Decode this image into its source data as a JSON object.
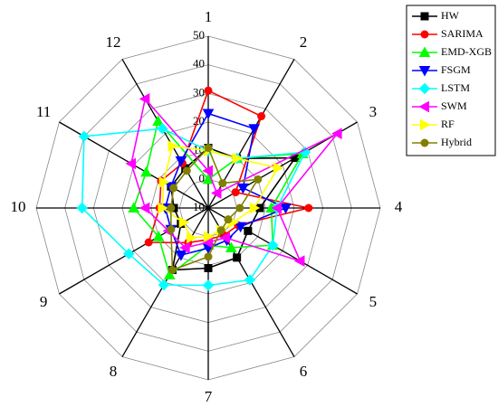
{
  "chart_data": {
    "type": "radar",
    "categories": [
      "1",
      "2",
      "3",
      "4",
      "5",
      "6",
      "7",
      "8",
      "9",
      "10",
      "11",
      "12"
    ],
    "rlim": [
      -10,
      50
    ],
    "rticks": [
      -10,
      0,
      10,
      20,
      30,
      40,
      50
    ],
    "grid": true,
    "legend": "upper right",
    "series": [
      {
        "name": "HW",
        "color": "#000000",
        "marker": "square",
        "values": [
          11,
          10,
          25,
          8,
          6,
          10,
          11,
          15,
          1,
          2,
          5,
          6
        ]
      },
      {
        "name": "SARIMA",
        "color": "#ff0000",
        "marker": "circle",
        "values": [
          31,
          27,
          1,
          25,
          2,
          1,
          1,
          4,
          14,
          7,
          9,
          8
        ]
      },
      {
        "name": "EMD-XGB",
        "color": "#00ff00",
        "marker": "triangle-up",
        "values": [
          0,
          10,
          28,
          12,
          16,
          6,
          3,
          17,
          10,
          16,
          15,
          25
        ]
      },
      {
        "name": "FSGM",
        "color": "#0000ff",
        "marker": "triangle-down",
        "values": [
          23,
          22,
          4,
          17,
          3,
          3,
          4,
          9,
          5,
          5,
          5,
          9
        ]
      },
      {
        "name": "LSTM",
        "color": "#00ffff",
        "marker": "diamond",
        "values": [
          10,
          10,
          29,
          14,
          16,
          19,
          17,
          21,
          22,
          34,
          40,
          22
        ]
      },
      {
        "name": "SWM",
        "color": "#ff00ff",
        "marker": "triangle-left",
        "values": [
          3,
          -4,
          42,
          14,
          27,
          2,
          2,
          6,
          6,
          12,
          21,
          34
        ]
      },
      {
        "name": "RF",
        "color": "#ffff00",
        "marker": "triangle-right",
        "values": [
          10,
          10,
          18,
          6,
          0,
          -1,
          0,
          2,
          0,
          6,
          8,
          15
        ]
      },
      {
        "name": "Hybrid",
        "color": "#808000",
        "marker": "circle",
        "values": [
          11,
          0,
          10,
          1,
          -2,
          -1,
          7,
          15,
          5,
          3,
          4,
          5
        ]
      }
    ]
  }
}
